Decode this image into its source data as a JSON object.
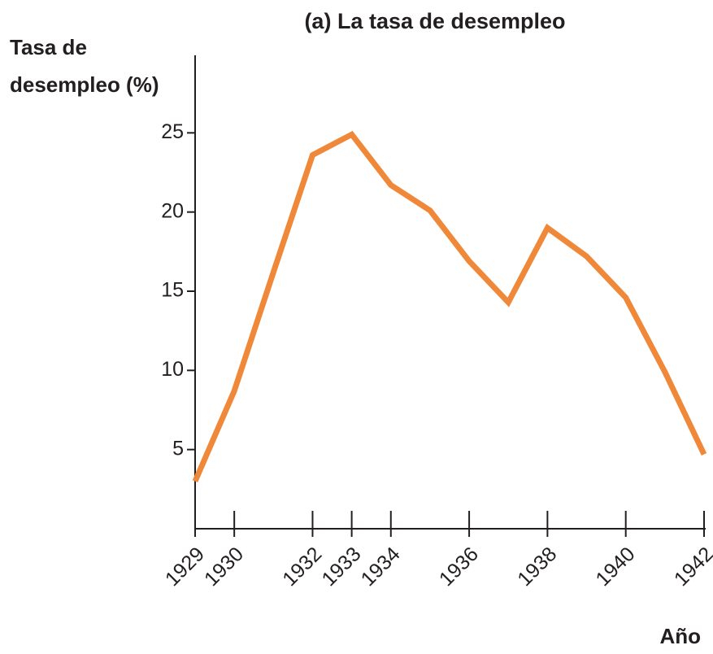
{
  "chart_data": {
    "type": "line",
    "title": "(a) La tasa de desempleo",
    "ylabel": [
      "Tasa de",
      "desempleo (%)"
    ],
    "xlabel": "Año",
    "x": [
      1929,
      1930,
      1931,
      1932,
      1933,
      1934,
      1935,
      1936,
      1937,
      1938,
      1939,
      1940,
      1941,
      1942
    ],
    "series": [
      {
        "name": "Tasa de desempleo",
        "color": "#f0883a",
        "values": [
          3.0,
          8.7,
          16.2,
          23.6,
          24.9,
          21.7,
          20.1,
          16.9,
          14.3,
          19.0,
          17.2,
          14.6,
          9.9,
          4.7
        ]
      }
    ],
    "xlim": [
      1929,
      1942
    ],
    "xticks": [
      1929,
      1930,
      1932,
      1933,
      1934,
      1936,
      1938,
      1940,
      1942
    ],
    "ylim": [
      0,
      30
    ],
    "yticks": [
      5,
      10,
      15,
      20,
      25
    ],
    "grid": false
  }
}
